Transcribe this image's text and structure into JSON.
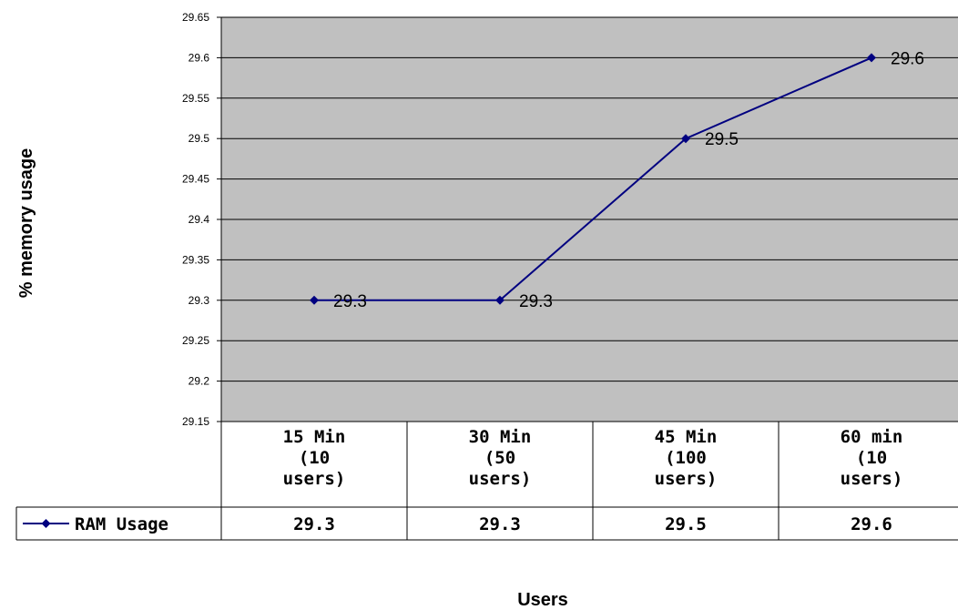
{
  "chart_data": {
    "type": "line",
    "categories": [
      [
        "15 Min",
        "(10",
        "users)"
      ],
      [
        "30 Min",
        "(50",
        "users)"
      ],
      [
        "45 Min",
        "(100",
        "users)"
      ],
      [
        "60 min",
        "(10",
        "users)"
      ]
    ],
    "series": [
      {
        "name": "RAM Usage",
        "values": [
          29.3,
          29.3,
          29.5,
          29.6
        ],
        "color": "#000080",
        "marker": "diamond"
      }
    ],
    "data_labels": [
      "29.3",
      "29.3",
      "29.5",
      "29.6"
    ],
    "table_values": [
      "29.3",
      "29.3",
      "29.5",
      "29.6"
    ],
    "xlabel": "Users",
    "ylabel": "% memory usage",
    "ylim": [
      29.15,
      29.65
    ],
    "yticks": [
      "29.15",
      "29.2",
      "29.25",
      "29.3",
      "29.35",
      "29.4",
      "29.45",
      "29.5",
      "29.55",
      "29.6",
      "29.65"
    ],
    "grid": true,
    "plot_background": "#c0c0c0",
    "legend_placement": "data-table",
    "data_table": true
  }
}
